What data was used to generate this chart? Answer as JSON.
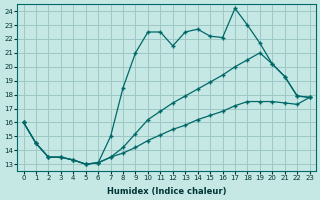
{
  "xlabel": "Humidex (Indice chaleur)",
  "bg_color": "#c5e8e5",
  "grid_color": "#9cc8c5",
  "line_color": "#006868",
  "xlim": [
    -0.5,
    23.5
  ],
  "ylim": [
    12.5,
    24.5
  ],
  "xticks": [
    0,
    1,
    2,
    3,
    4,
    5,
    6,
    7,
    8,
    9,
    10,
    11,
    12,
    13,
    14,
    15,
    16,
    17,
    18,
    19,
    20,
    21,
    22,
    23
  ],
  "yticks": [
    13,
    14,
    15,
    16,
    17,
    18,
    19,
    20,
    21,
    22,
    23,
    24
  ],
  "line1_x": [
    0,
    1,
    2,
    3,
    4,
    5,
    6,
    7,
    8,
    9,
    10,
    11,
    12,
    13,
    14,
    15,
    16,
    17,
    18,
    19,
    20,
    21,
    22,
    23
  ],
  "line1_y": [
    16.0,
    14.5,
    13.5,
    13.5,
    13.3,
    13.0,
    13.1,
    15.0,
    18.5,
    21.0,
    22.5,
    22.5,
    21.5,
    22.5,
    22.7,
    22.2,
    22.1,
    24.2,
    23.0,
    21.7,
    20.2,
    19.3,
    17.9,
    17.8
  ],
  "line2_x": [
    0,
    1,
    2,
    3,
    4,
    5,
    6,
    7,
    8,
    9,
    10,
    11,
    12,
    13,
    14,
    15,
    16,
    17,
    18,
    19,
    20,
    21,
    22,
    23
  ],
  "line2_y": [
    16.0,
    14.5,
    13.5,
    13.5,
    13.3,
    13.0,
    13.1,
    13.5,
    14.2,
    15.2,
    16.2,
    16.8,
    17.4,
    17.9,
    18.4,
    18.9,
    19.4,
    20.0,
    20.5,
    21.0,
    20.2,
    19.3,
    17.9,
    17.8
  ],
  "line3_x": [
    0,
    1,
    2,
    3,
    4,
    5,
    6,
    7,
    8,
    9,
    10,
    11,
    12,
    13,
    14,
    15,
    16,
    17,
    18,
    19,
    20,
    21,
    22,
    23
  ],
  "line3_y": [
    16.0,
    14.5,
    13.5,
    13.5,
    13.3,
    13.0,
    13.1,
    13.5,
    13.8,
    14.2,
    14.7,
    15.1,
    15.5,
    15.8,
    16.2,
    16.5,
    16.8,
    17.2,
    17.5,
    17.5,
    17.5,
    17.4,
    17.3,
    17.8
  ]
}
